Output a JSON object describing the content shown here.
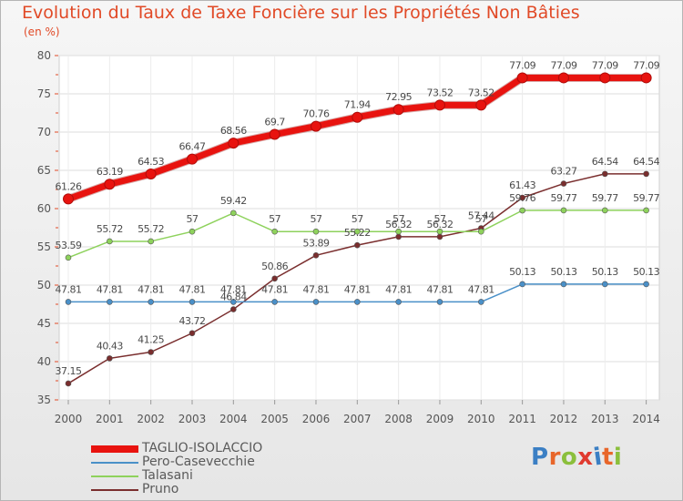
{
  "header": {
    "title": "Evolution du Taux de Taxe Foncière sur les Propriétés Non Bâties",
    "subtitle": "(en %)"
  },
  "logo": {
    "text": "Proxiti",
    "letter_colors": [
      "#3b7fc4",
      "#e8662a",
      "#8bbf3c",
      "#e03a2f",
      "#3b7fc4",
      "#e8662a",
      "#8bbf3c"
    ]
  },
  "chart_data": {
    "type": "line",
    "x": [
      "2000",
      "2001",
      "2002",
      "2003",
      "2004",
      "2005",
      "2006",
      "2007",
      "2008",
      "2009",
      "2010",
      "2011",
      "2012",
      "2013",
      "2014"
    ],
    "ylim": [
      35,
      80
    ],
    "yticks": [
      35,
      40,
      45,
      50,
      55,
      60,
      65,
      70,
      75,
      80
    ],
    "grid": true,
    "legend_position": "bottom-left",
    "series": [
      {
        "name": "TAGLIO-ISOLACCIO",
        "color": "#e8130f",
        "values": [
          61.26,
          63.19,
          64.53,
          66.47,
          68.56,
          69.7,
          70.76,
          71.94,
          72.95,
          73.52,
          73.52,
          77.09,
          77.09,
          77.09,
          77.09
        ],
        "labels": [
          "61.26",
          "63.19",
          "64.53",
          "66.47",
          "68.56",
          "69.7",
          "70.76",
          "71.94",
          "72.95",
          "73.52",
          "73.52",
          "77.09",
          "77.09",
          "77.09",
          "77.09"
        ]
      },
      {
        "name": "Pero-Casevecchie",
        "color": "#4a90c8",
        "values": [
          47.81,
          47.81,
          47.81,
          47.81,
          47.81,
          47.81,
          47.81,
          47.81,
          47.81,
          47.81,
          47.81,
          50.13,
          50.13,
          50.13,
          50.13
        ],
        "labels": [
          "47.81",
          "47.81",
          "47.81",
          "47.81",
          "47.81",
          "47.81",
          "47.81",
          "47.81",
          "47.81",
          "47.81",
          "47.81",
          "50.13",
          "50.13",
          "50.13",
          "50.13"
        ]
      },
      {
        "name": "Talasani",
        "color": "#8ed25c",
        "values": [
          53.59,
          55.72,
          55.72,
          57,
          59.42,
          57,
          57,
          57,
          57,
          57,
          57,
          59.76,
          59.77,
          59.77,
          59.77
        ],
        "labels": [
          "53.59",
          "55.72",
          "55.72",
          "57",
          "59.42",
          "57",
          "57",
          "57",
          "57",
          "57",
          "57",
          "59.76",
          "59.77",
          "59.77",
          "59.77"
        ]
      },
      {
        "name": "Pruno",
        "color": "#7a2e2e",
        "values": [
          37.15,
          40.43,
          41.25,
          43.72,
          46.84,
          50.86,
          53.89,
          55.22,
          56.32,
          56.32,
          57.44,
          61.43,
          63.27,
          64.54,
          64.54
        ],
        "labels": [
          "37.15",
          "40.43",
          "41.25",
          "43.72",
          "46.84",
          "50.86",
          "53.89",
          "55.22",
          "56.32",
          "56.32",
          "57.44",
          "61.43",
          "63.27",
          "64.54",
          "64.54"
        ]
      }
    ]
  }
}
